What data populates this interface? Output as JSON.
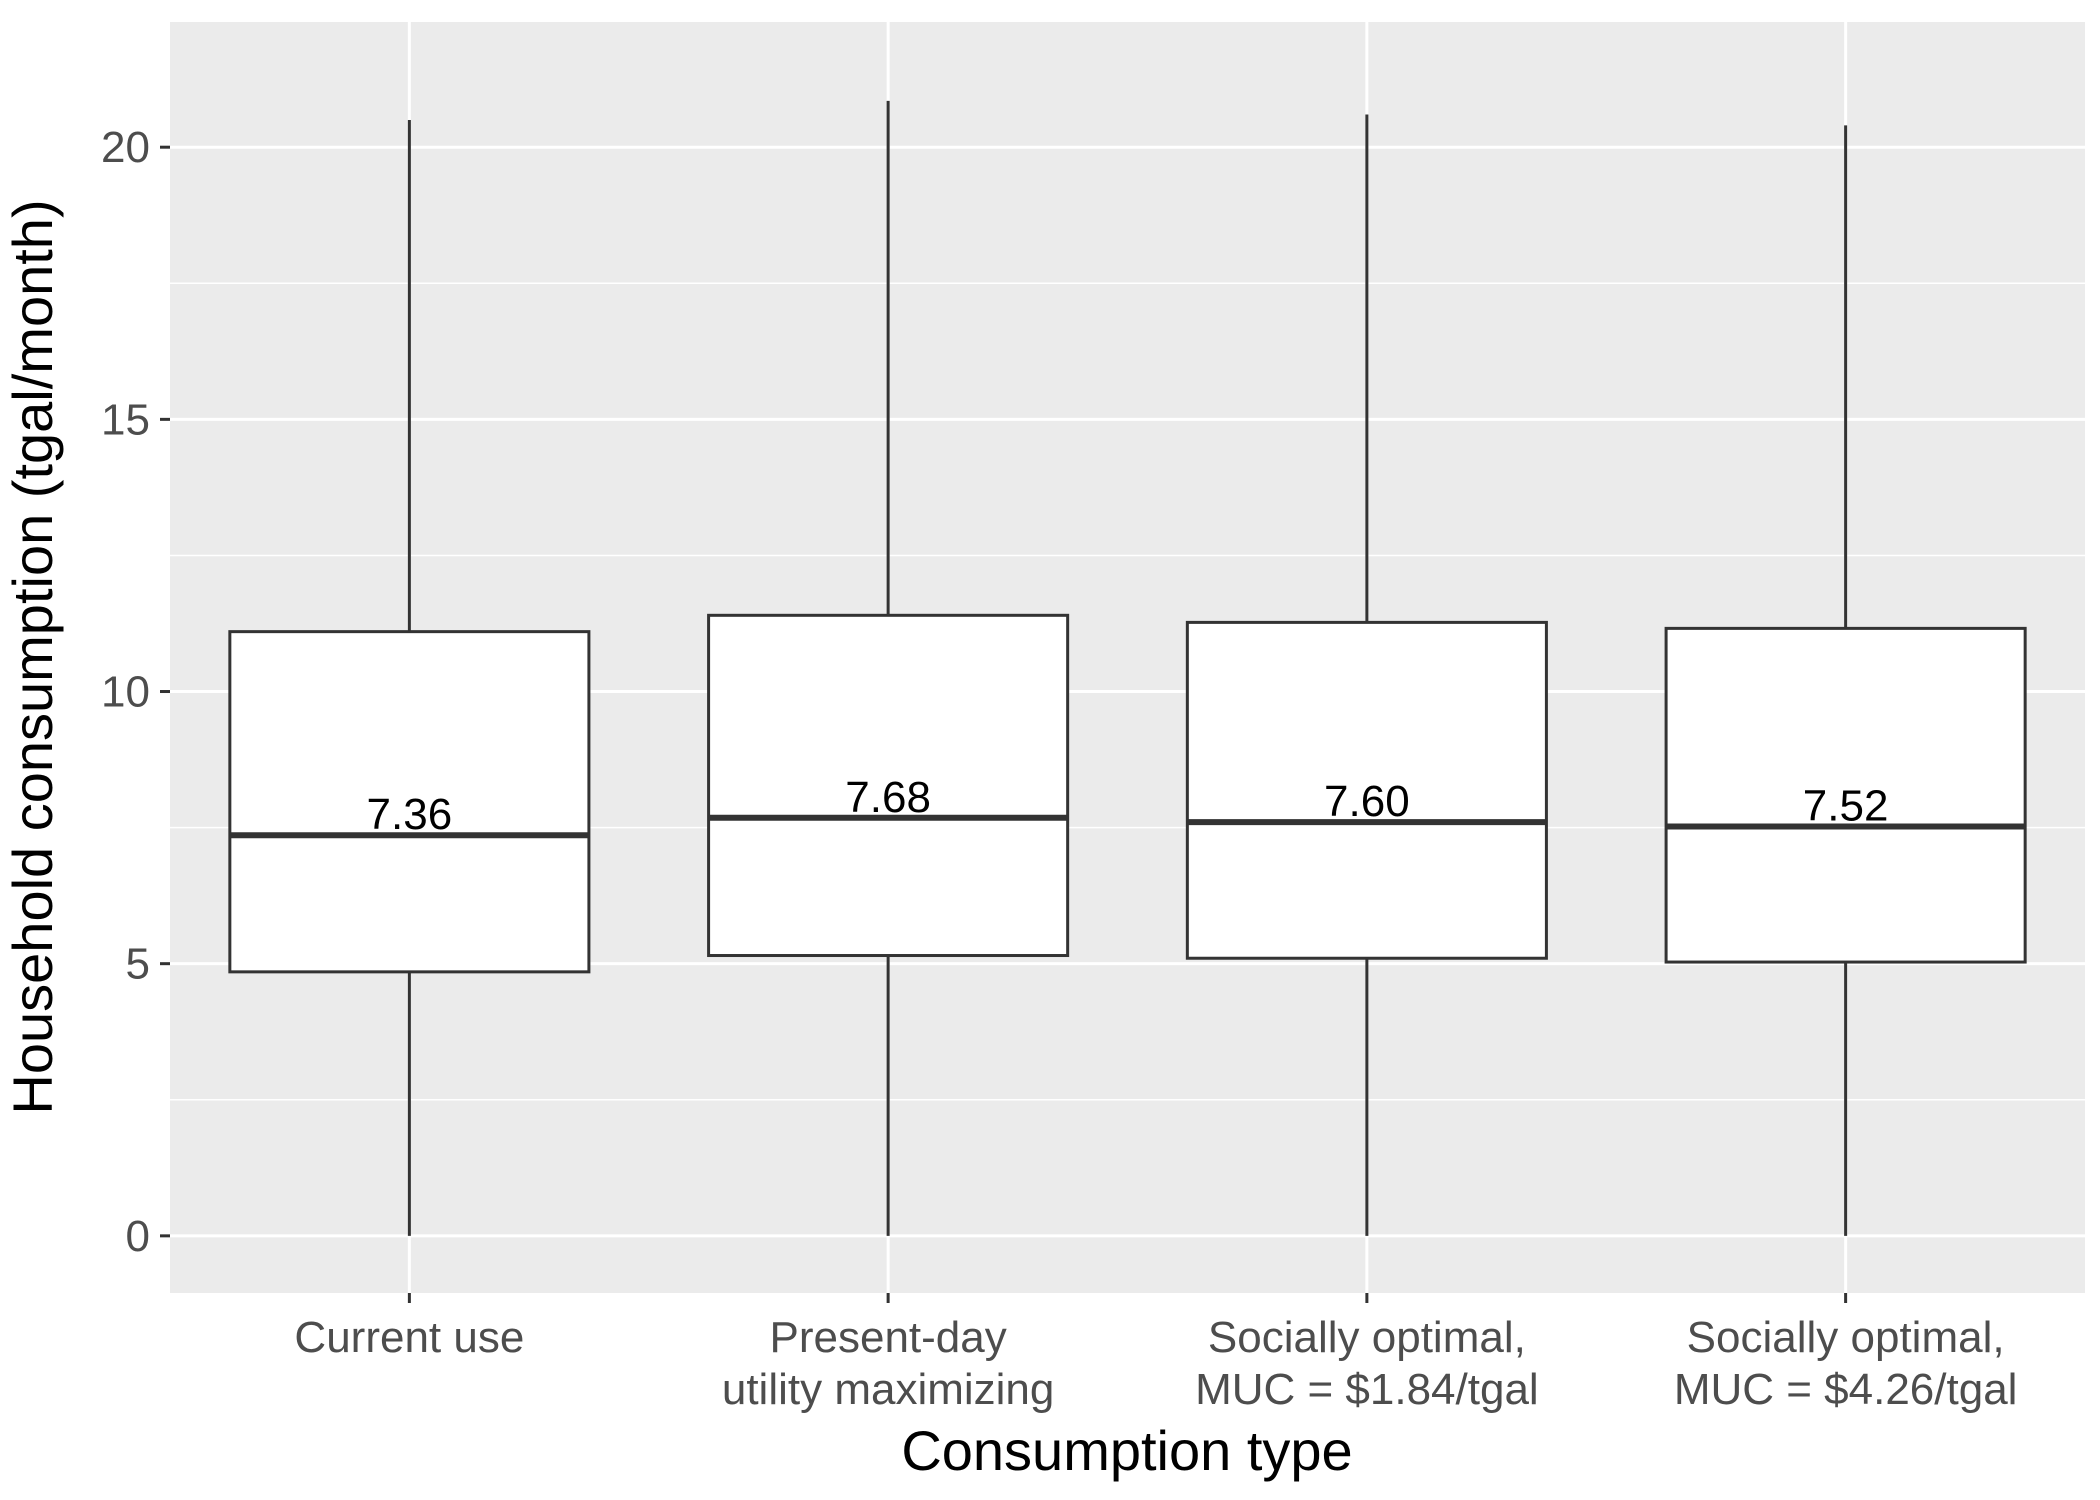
{
  "chart_data": {
    "type": "boxplot",
    "xlabel": "Consumption type",
    "ylabel": "Household consumption (tgal/month)",
    "ylim": [
      -1.05,
      22.3
    ],
    "yticks": [
      0,
      5,
      10,
      15,
      20
    ],
    "grid": true,
    "categories": [
      [
        "Current use"
      ],
      [
        "Present-day",
        "utility maximizing"
      ],
      [
        "Socially optimal,",
        "MUC = $1.84/tgal"
      ],
      [
        "Socially optimal,",
        "MUC = $4.26/tgal"
      ]
    ],
    "boxes": [
      {
        "min": 0,
        "q1": 4.85,
        "median": 7.36,
        "q3": 11.1,
        "max": 20.5,
        "label": "7.36"
      },
      {
        "min": 0,
        "q1": 5.15,
        "median": 7.68,
        "q3": 11.4,
        "max": 20.85,
        "label": "7.68"
      },
      {
        "min": 0,
        "q1": 5.1,
        "median": 7.6,
        "q3": 11.27,
        "max": 20.6,
        "label": "7.60"
      },
      {
        "min": 0,
        "q1": 5.03,
        "median": 7.52,
        "q3": 11.16,
        "max": 20.4,
        "label": "7.52"
      }
    ],
    "colors": {
      "panel": "#ebebeb",
      "grid": "#ffffff",
      "box_fill": "#ffffff",
      "box_stroke": "#333333"
    }
  }
}
